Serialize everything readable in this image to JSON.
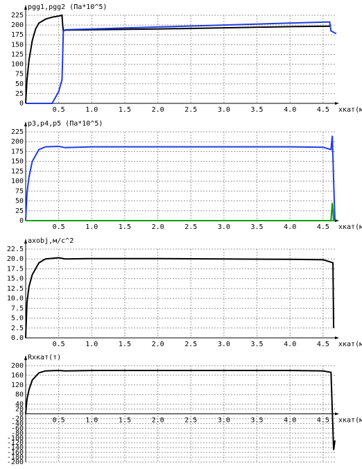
{
  "chart_data": [
    {
      "type": "line",
      "ylabel": "pgg1,pgg2 (Па*10^5)",
      "xlabel": "xкат(м)",
      "x": [
        0,
        0.02,
        0.05,
        0.1,
        0.15,
        0.2,
        0.3,
        0.4,
        0.5,
        0.55,
        0.56,
        0.57,
        0.6,
        1.0,
        2.0,
        3.0,
        4.0,
        4.6,
        4.62,
        4.7
      ],
      "series": [
        {
          "color": "#000000",
          "values": [
            0,
            60,
            110,
            160,
            190,
            205,
            215,
            220,
            223,
            225,
            200,
            185,
            187,
            188,
            190,
            193,
            196,
            197,
            null,
            null
          ]
        },
        {
          "color": "#1f3be0",
          "values": [
            0,
            0,
            0,
            0,
            0,
            0,
            0,
            0,
            30,
            60,
            120,
            185,
            188,
            190,
            195,
            200,
            205,
            208,
            185,
            178
          ]
        }
      ],
      "xlim": [
        0,
        4.68
      ],
      "ylim": [
        0,
        225
      ],
      "xticks": [
        0.5,
        {
          "value": 1,
          "label": "1.0"
        },
        1.5,
        {
          "value": 2,
          "label": "2.0"
        },
        2.5,
        {
          "value": 3,
          "label": "3.0"
        },
        3.5,
        {
          "value": 4,
          "label": "4.0"
        },
        4.5
      ],
      "yticks": [
        0,
        25,
        50,
        75,
        100,
        125,
        150,
        175,
        200,
        225
      ],
      "grid": true
    },
    {
      "type": "line",
      "ylabel": "p3,p4,p5 (Па*10^5)",
      "xlabel": "xкат(м)",
      "x": [
        0,
        0.02,
        0.05,
        0.1,
        0.2,
        0.3,
        0.5,
        0.6,
        1,
        2,
        3,
        4,
        4.5,
        4.62,
        4.64,
        4.66,
        4.68
      ],
      "series": [
        {
          "color": "#1f3be0",
          "values": [
            0,
            70,
            110,
            150,
            180,
            187,
            188,
            185,
            187,
            187,
            187,
            187,
            186,
            180,
            215,
            100,
            0
          ]
        },
        {
          "color": "#00a000",
          "values": [
            0,
            0,
            0,
            0,
            0,
            0,
            0,
            0,
            0,
            0,
            0,
            0,
            0,
            0,
            45,
            0,
            0
          ]
        }
      ],
      "xlim": [
        0,
        4.68
      ],
      "ylim": [
        0,
        225
      ],
      "xticks": [
        0.5,
        {
          "value": 1,
          "label": "1.0"
        },
        1.5,
        {
          "value": 2,
          "label": "2.0"
        },
        2.5,
        {
          "value": 3,
          "label": "3.0"
        },
        3.5,
        {
          "value": 4,
          "label": "4.0"
        },
        4.5
      ],
      "yticks": [
        0,
        25,
        50,
        75,
        100,
        125,
        150,
        175,
        200,
        225
      ],
      "grid": true
    },
    {
      "type": "line",
      "ylabel": "axobj,м/с^2",
      "xlabel": "xкат(м)",
      "x": [
        0,
        0.02,
        0.05,
        0.1,
        0.2,
        0.3,
        0.5,
        0.6,
        1,
        2,
        3,
        4,
        4.5,
        4.62,
        4.65,
        4.66
      ],
      "series": [
        {
          "color": "#000000",
          "values": [
            0,
            9,
            13,
            16,
            19,
            20,
            20.3,
            20,
            20.1,
            20.1,
            20,
            19.9,
            19.8,
            19.2,
            19,
            2.5
          ]
        }
      ],
      "xlim": [
        0,
        4.68
      ],
      "ylim": [
        0,
        22.5
      ],
      "xticks": [
        0.5,
        {
          "value": 1,
          "label": "1.0"
        },
        1.5,
        {
          "value": 2,
          "label": "2.0"
        },
        2.5,
        {
          "value": 3,
          "label": "3.0"
        },
        3.5,
        {
          "value": 4,
          "label": "4.0"
        },
        4.5
      ],
      "yticks": [
        {
          "value": 0,
          "label": "0.0"
        },
        2.5,
        {
          "value": 5,
          "label": "5.0"
        },
        7.5,
        {
          "value": 10,
          "label": "10.0"
        },
        12.5,
        {
          "value": 15,
          "label": "15.0"
        },
        17.5,
        {
          "value": 20,
          "label": "20.0"
        },
        22.5
      ],
      "grid": true
    },
    {
      "type": "line",
      "ylabel": "Rxкат(т)",
      "xlabel": "xкат(м)",
      "x": [
        0,
        0.02,
        0.05,
        0.1,
        0.2,
        0.3,
        0.5,
        0.6,
        1,
        2,
        3,
        4,
        4.5,
        4.62,
        4.66,
        4.68
      ],
      "series": [
        {
          "color": "#000000",
          "values": [
            0,
            60,
            100,
            140,
            170,
            178,
            180,
            178,
            180,
            180,
            180,
            180,
            178,
            172,
            -150,
            -110
          ]
        }
      ],
      "xlim": [
        0,
        4.68
      ],
      "ylim": [
        -200,
        200
      ],
      "xticks": [
        0.5,
        {
          "value": 1,
          "label": "1.0"
        },
        1.5,
        {
          "value": 2,
          "label": "2.0"
        },
        2.5,
        {
          "value": 3,
          "label": "3.0"
        },
        3.5,
        {
          "value": 4,
          "label": "4.0"
        },
        4.5
      ],
      "yticks": [
        -200,
        -180,
        -160,
        -140,
        -120,
        -100,
        -80,
        -60,
        -40,
        -20,
        0,
        20,
        40,
        80,
        120,
        160,
        200
      ],
      "grid": true
    }
  ]
}
